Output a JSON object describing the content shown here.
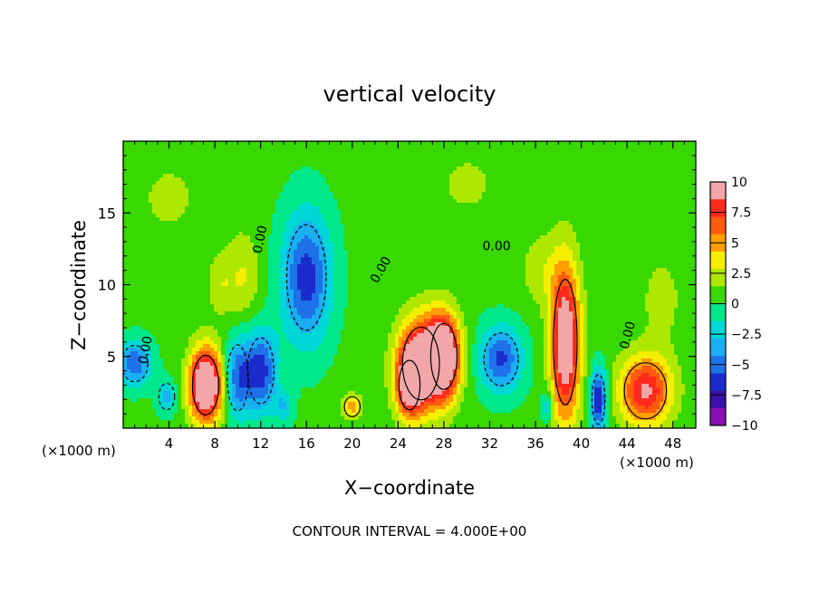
{
  "chart_data": {
    "type": "heatmap",
    "title": "vertical velocity",
    "xlabel": "X−coordinate",
    "ylabel": "Z−coordinate",
    "x_unit_left": "(×1000 m)",
    "x_unit_right": "(×1000 m)",
    "xlim": [
      0,
      50
    ],
    "ylim": [
      0,
      20
    ],
    "x_ticks": [
      4,
      8,
      12,
      16,
      20,
      24,
      28,
      32,
      36,
      40,
      44,
      48
    ],
    "x_tick_labels": [
      "4",
      "8",
      "12",
      "16",
      "20",
      "24",
      "28",
      "32",
      "36",
      "40",
      "44",
      "48"
    ],
    "y_ticks": [
      5,
      10,
      15
    ],
    "y_tick_labels": [
      "5",
      "10",
      "15"
    ],
    "colorbar": {
      "vmin": -10,
      "vmax": 10,
      "tick_labels": [
        "10",
        "7.5",
        "5",
        "2.5",
        "0",
        "−2.5",
        "−5",
        "−7.5",
        "−10"
      ],
      "tick_values": [
        10,
        7.5,
        5,
        2.5,
        0,
        -2.5,
        -5,
        -7.5,
        -10
      ],
      "colors": [
        "#f2a6a8",
        "#ff2a1e",
        "#ff5a10",
        "#ff9e00",
        "#f5ee00",
        "#aee800",
        "#38d800",
        "#00e88a",
        "#00d6d6",
        "#1aaef2",
        "#1e72e8",
        "#1a2ccc",
        "#3a10a8",
        "#8a10b4"
      ]
    },
    "contour_labels": [
      {
        "text": "0.00",
        "x": 12.3,
        "y": 13.1,
        "rotate": -78
      },
      {
        "text": "0.00",
        "x": 22.8,
        "y": 10.9,
        "rotate": -60
      },
      {
        "text": "0.00",
        "x": 32.6,
        "y": 12.4,
        "rotate": 0
      },
      {
        "text": "0.00",
        "x": 2.3,
        "y": 5.4,
        "rotate": -80
      },
      {
        "text": "0.00",
        "x": 44.4,
        "y": 6.4,
        "rotate": -75
      }
    ],
    "features": [
      {
        "x": 7.2,
        "z": 3.0,
        "amp": 13,
        "sx": 1.0,
        "sz": 1.8
      },
      {
        "x": 26.0,
        "z": 4.5,
        "amp": 11,
        "sx": 1.4,
        "sz": 2.2
      },
      {
        "x": 28.0,
        "z": 5.0,
        "amp": 12,
        "sx": 1.0,
        "sz": 2.0
      },
      {
        "x": 25.0,
        "z": 3.0,
        "amp": 8,
        "sx": 0.8,
        "sz": 1.5
      },
      {
        "x": 38.6,
        "z": 6.0,
        "amp": 11,
        "sx": 0.9,
        "sz": 3.8
      },
      {
        "x": 45.6,
        "z": 2.6,
        "amp": 8.5,
        "sx": 1.6,
        "sz": 1.7
      },
      {
        "x": 16.0,
        "z": 10.5,
        "amp": -7,
        "sx": 1.5,
        "sz": 3.2
      },
      {
        "x": 12.0,
        "z": 4.0,
        "amp": -7,
        "sx": 1.0,
        "sz": 2.0
      },
      {
        "x": 10.0,
        "z": 3.5,
        "amp": -5.5,
        "sx": 0.8,
        "sz": 2.0
      },
      {
        "x": 33.0,
        "z": 4.8,
        "amp": -6.5,
        "sx": 1.3,
        "sz": 1.6
      },
      {
        "x": 41.5,
        "z": 2.0,
        "amp": -8,
        "sx": 0.5,
        "sz": 1.5
      },
      {
        "x": 1.0,
        "z": 4.5,
        "amp": -6,
        "sx": 1.0,
        "sz": 1.1
      },
      {
        "x": 3.8,
        "z": 2.2,
        "amp": -4,
        "sx": 0.6,
        "sz": 0.8
      },
      {
        "x": 10.5,
        "z": 10.5,
        "amp": 2.5,
        "sx": 1.0,
        "sz": 2.2
      },
      {
        "x": 8.5,
        "z": 10.0,
        "amp": 2.0,
        "sx": 0.8,
        "sz": 1.5
      },
      {
        "x": 20.0,
        "z": 1.5,
        "amp": 4.5,
        "sx": 0.6,
        "sz": 0.6
      },
      {
        "x": 36.5,
        "z": 11.0,
        "amp": 2.0,
        "sx": 1.2,
        "sz": 1.8
      },
      {
        "x": 37.0,
        "z": 1.5,
        "amp": -3.0,
        "sx": 0.4,
        "sz": 0.8
      },
      {
        "x": 14.0,
        "z": 1.5,
        "amp": -3.0,
        "sx": 0.6,
        "sz": 0.8
      },
      {
        "x": 4.0,
        "z": 16.0,
        "amp": 1.2,
        "sx": 3.0,
        "sz": 3.0
      },
      {
        "x": 30.0,
        "z": 17.0,
        "amp": 1.2,
        "sx": 3.0,
        "sz": 2.5
      },
      {
        "x": 47.0,
        "z": 9.0,
        "amp": 1.5,
        "sx": 1.5,
        "sz": 2.5
      }
    ],
    "footnote": "CONTOUR INTERVAL = 4.000E+00"
  }
}
